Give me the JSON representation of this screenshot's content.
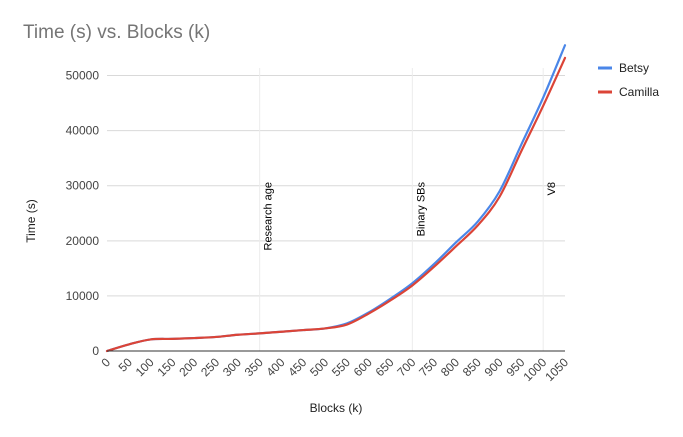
{
  "chart_data": {
    "type": "line",
    "title": "Time (s) vs. Blocks (k)",
    "xlabel": "Blocks (k)",
    "ylabel": "Time (s)",
    "xlim": [
      0,
      1050
    ],
    "ylim": [
      0,
      55000
    ],
    "x_ticks": [
      0,
      50,
      100,
      150,
      200,
      250,
      300,
      350,
      400,
      450,
      500,
      550,
      600,
      650,
      700,
      750,
      800,
      850,
      900,
      950,
      1000,
      1050
    ],
    "y_ticks": [
      0,
      10000,
      20000,
      30000,
      40000,
      50000
    ],
    "x_tick_labels": [
      "0",
      "50",
      "100",
      "150",
      "200",
      "250",
      "300",
      "350",
      "400",
      "450",
      "500",
      "550",
      "600",
      "650",
      "700",
      "750",
      "800",
      "850",
      "900",
      "950",
      "1000",
      "1050"
    ],
    "y_tick_labels": [
      "0",
      "10000",
      "20000",
      "30000",
      "40000",
      "50000"
    ],
    "grid": true,
    "legend_position": "right",
    "x": [
      0,
      50,
      100,
      150,
      200,
      250,
      300,
      350,
      400,
      450,
      500,
      550,
      600,
      650,
      700,
      750,
      800,
      850,
      900,
      950,
      1000,
      1050
    ],
    "series": [
      {
        "name": "Betsy",
        "color": "#4a86e8",
        "values": [
          0,
          1200,
          2100,
          2200,
          2350,
          2550,
          2950,
          3200,
          3500,
          3800,
          4100,
          5000,
          7000,
          9500,
          12300,
          15800,
          19700,
          23500,
          29000,
          37500,
          46000,
          55500
        ]
      },
      {
        "name": "Camilla",
        "color": "#db4437",
        "values": [
          0,
          1200,
          2100,
          2200,
          2350,
          2550,
          2950,
          3200,
          3500,
          3800,
          4100,
          4800,
          6800,
          9200,
          11900,
          15300,
          19000,
          22800,
          28000,
          36300,
          44500,
          53200
        ]
      }
    ],
    "annotations": [
      {
        "x": 350,
        "text": "Research age"
      },
      {
        "x": 700,
        "text": "Binary SBs"
      },
      {
        "x": 1000,
        "text": "V8"
      }
    ]
  }
}
